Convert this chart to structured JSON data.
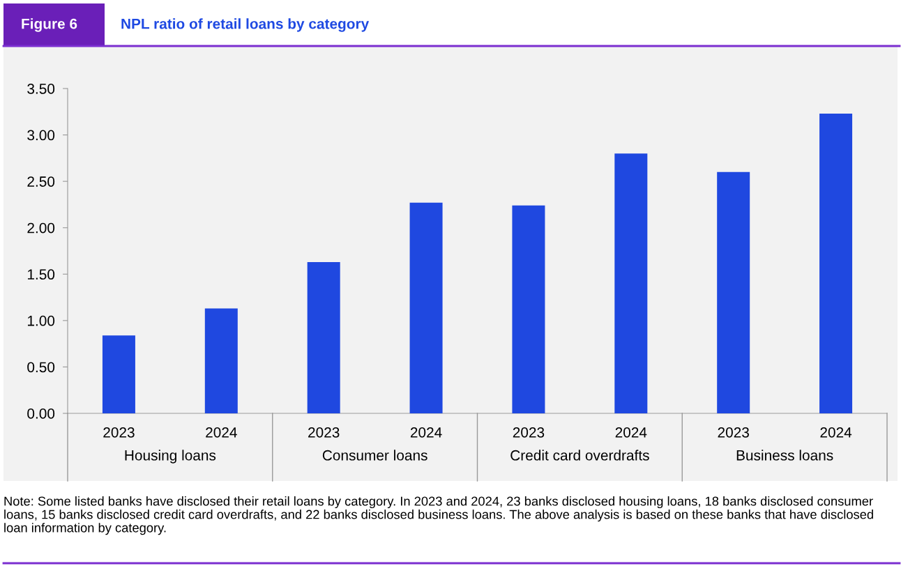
{
  "chart_data": {
    "type": "bar",
    "title": "Figure 6",
    "subtitle": "NPL ratio of retail loans by category",
    "categories": [
      "2023",
      "2024",
      "2023",
      "2024",
      "2023",
      "2024",
      "2023",
      "2024"
    ],
    "values": [
      0.84,
      1.13,
      1.63,
      2.27,
      2.24,
      2.8,
      2.6,
      3.23
    ],
    "color": "#1f48e0",
    "ylim": [
      0,
      3.5
    ],
    "yticks": [
      {
        "value": 0,
        "label": "0.00"
      },
      {
        "value": 0.5,
        "label": "0.50"
      },
      {
        "value": 1,
        "label": "1.00"
      },
      {
        "value": 1.5,
        "label": "1.50"
      },
      {
        "value": 2,
        "label": "2.00"
      },
      {
        "value": 2.5,
        "label": "2.50"
      },
      {
        "value": 3,
        "label": "3.00"
      },
      {
        "value": 3.5,
        "label": "3.50"
      }
    ],
    "annotations": [
      "Housing loans",
      "Consumer loans",
      "Credit card overdrafts",
      "Business loans",
      "Note: Some listed banks have disclosed their retail loans by category. In 2023 and 2024, 23 banks disclosed housing loans, 18 banks disclosed consumer loans, 15 banks disclosed credit card overdrafts, and 22 banks disclosed business loans. The above analysis is based on these banks that have disclosed loan information by category."
    ]
  }
}
